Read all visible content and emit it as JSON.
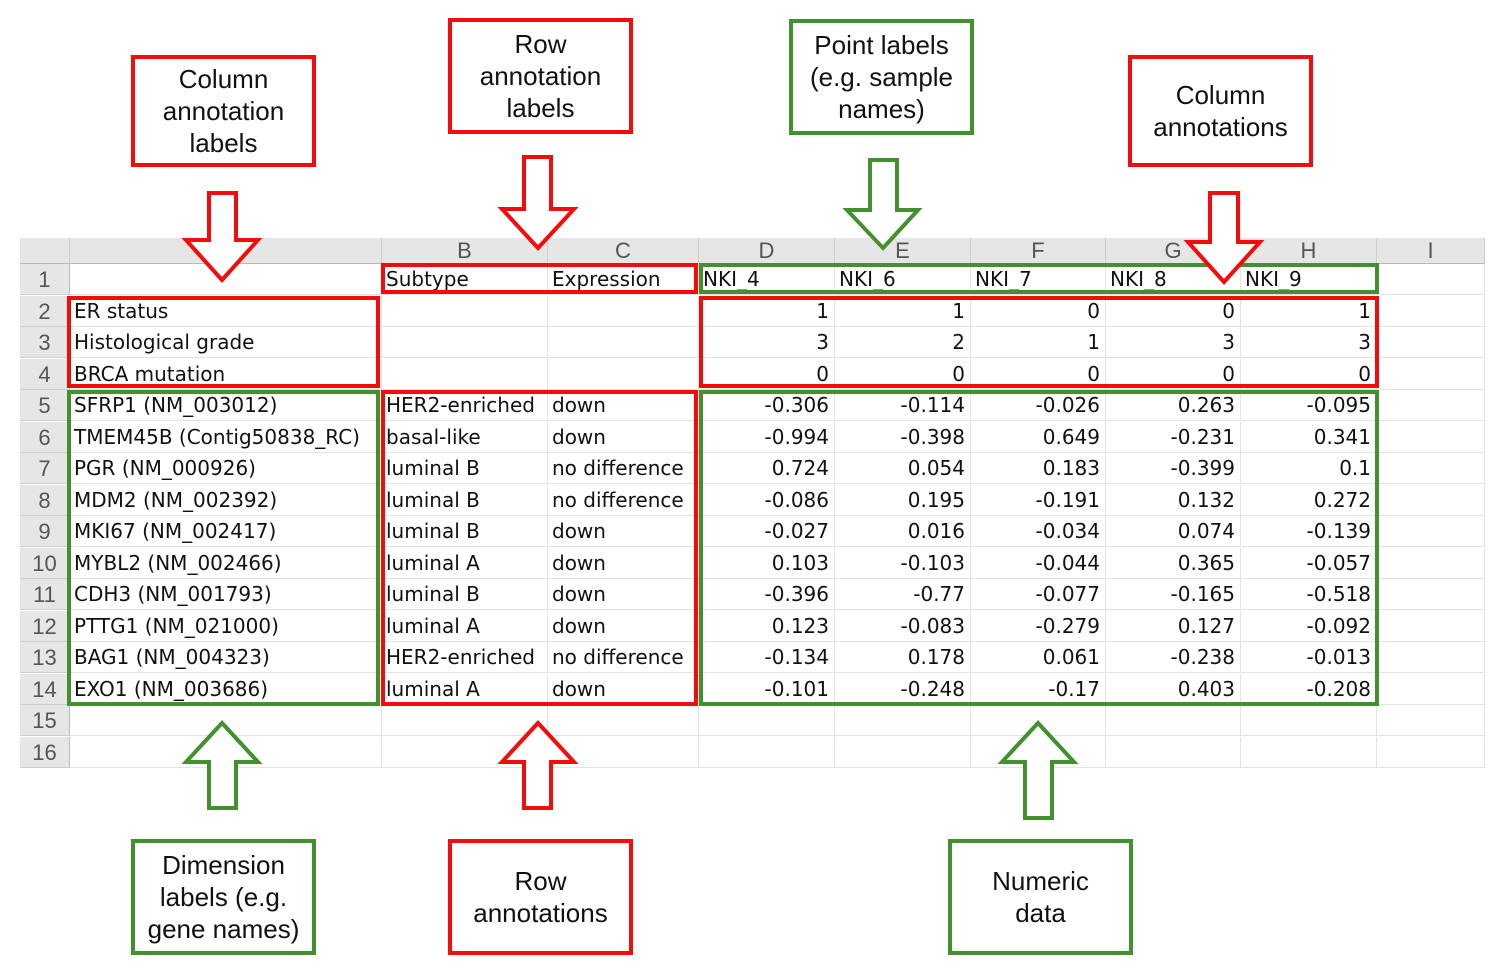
{
  "columns": [
    "B",
    "C",
    "D",
    "E",
    "F",
    "G",
    "H",
    "I"
  ],
  "row_numbers": [
    "1",
    "2",
    "3",
    "4",
    "5",
    "6",
    "7",
    "8",
    "9",
    "10",
    "11",
    "12",
    "13",
    "14",
    "15",
    "16"
  ],
  "header_row": {
    "b": "Subtype",
    "c": "Expression",
    "samples": [
      "NKI_4",
      "NKI_6",
      "NKI_7",
      "NKI_8",
      "NKI_9"
    ]
  },
  "annotation_rows": [
    {
      "label": "ER status",
      "values": [
        "1",
        "1",
        "0",
        "0",
        "1"
      ]
    },
    {
      "label": "Histological grade",
      "values": [
        "3",
        "2",
        "1",
        "3",
        "3"
      ]
    },
    {
      "label": "BRCA mutation",
      "values": [
        "0",
        "0",
        "0",
        "0",
        "0"
      ]
    }
  ],
  "gene_rows": [
    {
      "gene": "SFRP1 (NM_003012)",
      "subtype": "HER2-enriched",
      "expression": "down",
      "values": [
        "-0.306",
        "-0.114",
        "-0.026",
        "0.263",
        "-0.095"
      ]
    },
    {
      "gene": "TMEM45B (Contig50838_RC)",
      "subtype": "basal-like",
      "expression": "down",
      "values": [
        "-0.994",
        "-0.398",
        "0.649",
        "-0.231",
        "0.341"
      ]
    },
    {
      "gene": "PGR (NM_000926)",
      "subtype": "luminal B",
      "expression": "no difference",
      "values": [
        "0.724",
        "0.054",
        "0.183",
        "-0.399",
        "0.1"
      ]
    },
    {
      "gene": "MDM2 (NM_002392)",
      "subtype": "luminal B",
      "expression": "no difference",
      "values": [
        "-0.086",
        "0.195",
        "-0.191",
        "0.132",
        "0.272"
      ]
    },
    {
      "gene": "MKI67 (NM_002417)",
      "subtype": "luminal B",
      "expression": "down",
      "values": [
        "-0.027",
        "0.016",
        "-0.034",
        "0.074",
        "-0.139"
      ]
    },
    {
      "gene": "MYBL2 (NM_002466)",
      "subtype": "luminal A",
      "expression": "down",
      "values": [
        "0.103",
        "-0.103",
        "-0.044",
        "0.365",
        "-0.057"
      ]
    },
    {
      "gene": "CDH3 (NM_001793)",
      "subtype": "luminal B",
      "expression": "down",
      "values": [
        "-0.396",
        "-0.77",
        "-0.077",
        "-0.165",
        "-0.518"
      ]
    },
    {
      "gene": "PTTG1 (NM_021000)",
      "subtype": "luminal A",
      "expression": "down",
      "values": [
        "0.123",
        "-0.083",
        "-0.279",
        "0.127",
        "-0.092"
      ]
    },
    {
      "gene": "BAG1 (NM_004323)",
      "subtype": "HER2-enriched",
      "expression": "no difference",
      "values": [
        "-0.134",
        "0.178",
        "0.061",
        "-0.238",
        "-0.013"
      ]
    },
    {
      "gene": "EXO1 (NM_003686)",
      "subtype": "luminal A",
      "expression": "down",
      "values": [
        "-0.101",
        "-0.248",
        "-0.17",
        "0.403",
        "-0.208"
      ]
    }
  ],
  "callouts": {
    "column_annotation_labels": "Column\nannotation\nlabels",
    "row_annotation_labels": "Row\nannotation\nlabels",
    "point_labels": "Point labels\n(e.g. sample\nnames)",
    "column_annotations": "Column\nannotations",
    "dimension_labels": "Dimension\nlabels (e.g.\ngene names)",
    "row_annotations": "Row\nannotations",
    "numeric_data": "Numeric\ndata"
  },
  "colors": {
    "red": "#f40c0c",
    "green": "#43912e"
  }
}
